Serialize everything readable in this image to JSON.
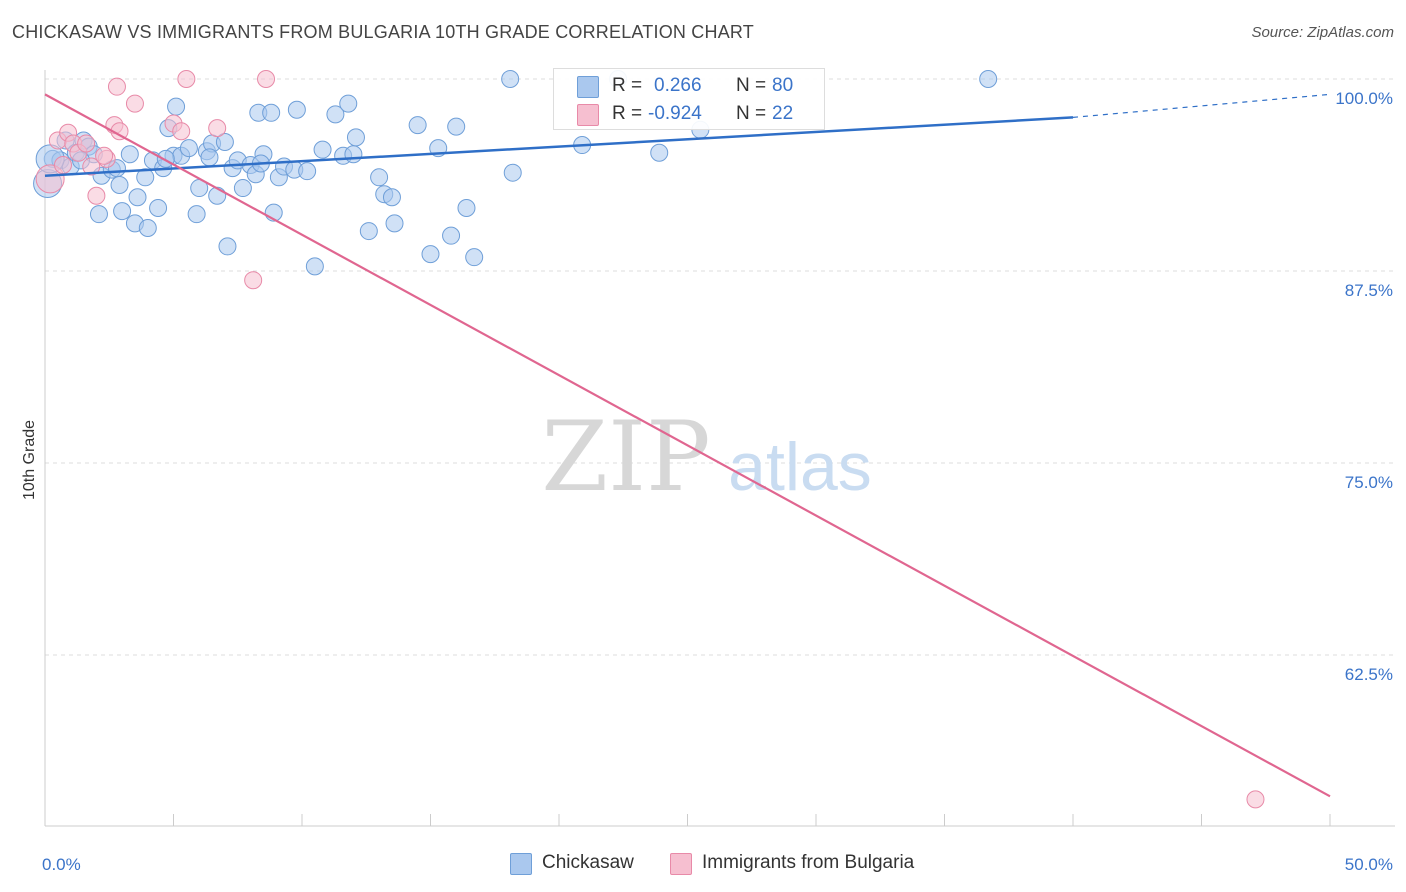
{
  "title": "CHICKASAW VS IMMIGRANTS FROM BULGARIA 10TH GRADE CORRELATION CHART",
  "source": "Source: ZipAtlas.com",
  "watermark": {
    "zip": "ZIP",
    "atlas": "atlas"
  },
  "legend_top": {
    "rows": [
      {
        "r_label": "R =",
        "r_value": "0.266",
        "n_label": "N =",
        "n_value": "80"
      },
      {
        "r_label": "R =",
        "r_value": "-0.924",
        "n_label": "N =",
        "n_value": "22"
      }
    ]
  },
  "legend_bottom": {
    "items": [
      "Chickasaw",
      "Immigrants from Bulgaria"
    ]
  },
  "colors": {
    "blue_fill": "#aac8ee",
    "blue_stroke": "#6f9fd8",
    "blue_line": "#2f6fc7",
    "pink_fill": "#f6bfd0",
    "pink_stroke": "#e88aa8",
    "pink_line": "#e06690",
    "tick_label": "#3b74c9",
    "grid": "#dddddd"
  },
  "chart_data": {
    "type": "scatter",
    "title": "CHICKASAW VS IMMIGRANTS FROM BULGARIA 10TH GRADE CORRELATION CHART",
    "xlabel": "",
    "ylabel": "10th Grade",
    "xlim": [
      0,
      50
    ],
    "ylim": [
      51,
      101
    ],
    "x_tick_labels": [
      {
        "value": 0,
        "label": "0.0%"
      },
      {
        "value": 50,
        "label": "50.0%"
      }
    ],
    "y_tick_labels": [
      {
        "value": 100,
        "label": "100.0%"
      },
      {
        "value": 87.5,
        "label": "87.5%"
      },
      {
        "value": 75,
        "label": "75.0%"
      },
      {
        "value": 62.5,
        "label": "62.5%"
      }
    ],
    "series": [
      {
        "name": "Chickasaw",
        "color": "blue",
        "R": 0.266,
        "N": 80,
        "trend": {
          "x": [
            0,
            40
          ],
          "y": [
            93.7,
            97.5
          ],
          "dashed_to": [
            50,
            99.0
          ]
        },
        "points": [
          [
            0.1,
            93.2
          ],
          [
            0.3,
            94.8
          ],
          [
            0.6,
            94.7
          ],
          [
            0.8,
            96.0
          ],
          [
            1.0,
            94.3
          ],
          [
            1.2,
            95.2
          ],
          [
            1.5,
            96.0
          ],
          [
            1.7,
            95.6
          ],
          [
            1.9,
            95.1
          ],
          [
            2.1,
            91.2
          ],
          [
            2.2,
            93.7
          ],
          [
            2.6,
            94.1
          ],
          [
            2.9,
            93.1
          ],
          [
            3.0,
            91.4
          ],
          [
            3.3,
            95.1
          ],
          [
            3.5,
            90.6
          ],
          [
            3.6,
            92.3
          ],
          [
            3.9,
            93.6
          ],
          [
            4.0,
            90.3
          ],
          [
            4.2,
            94.7
          ],
          [
            4.4,
            91.6
          ],
          [
            4.6,
            94.2
          ],
          [
            4.8,
            96.8
          ],
          [
            5.0,
            95.0
          ],
          [
            5.1,
            98.2
          ],
          [
            5.3,
            95.0
          ],
          [
            5.6,
            95.5
          ],
          [
            5.9,
            91.2
          ],
          [
            6.0,
            92.9
          ],
          [
            6.3,
            95.3
          ],
          [
            6.5,
            95.8
          ],
          [
            6.7,
            92.4
          ],
          [
            7.0,
            95.9
          ],
          [
            7.1,
            89.1
          ],
          [
            7.3,
            94.2
          ],
          [
            7.5,
            94.7
          ],
          [
            7.7,
            92.9
          ],
          [
            8.0,
            94.4
          ],
          [
            8.2,
            93.8
          ],
          [
            8.3,
            97.8
          ],
          [
            8.5,
            95.1
          ],
          [
            8.8,
            97.8
          ],
          [
            8.9,
            91.3
          ],
          [
            9.1,
            93.6
          ],
          [
            9.3,
            94.3
          ],
          [
            9.7,
            94.1
          ],
          [
            9.8,
            98.0
          ],
          [
            10.2,
            94.0
          ],
          [
            10.5,
            87.8
          ],
          [
            10.8,
            95.4
          ],
          [
            11.3,
            97.7
          ],
          [
            11.6,
            95.0
          ],
          [
            11.8,
            98.4
          ],
          [
            12.0,
            95.1
          ],
          [
            12.1,
            96.2
          ],
          [
            12.6,
            90.1
          ],
          [
            13.0,
            93.6
          ],
          [
            13.2,
            92.5
          ],
          [
            13.5,
            92.3
          ],
          [
            13.6,
            90.6
          ],
          [
            14.5,
            97.0
          ],
          [
            15.0,
            88.6
          ],
          [
            15.3,
            95.5
          ],
          [
            15.8,
            89.8
          ],
          [
            16.0,
            96.9
          ],
          [
            16.4,
            91.6
          ],
          [
            16.7,
            88.4
          ],
          [
            18.2,
            93.9
          ],
          [
            18.1,
            100.0
          ],
          [
            20.9,
            95.7
          ],
          [
            22.3,
            100.0
          ],
          [
            23.9,
            95.2
          ],
          [
            25.5,
            96.7
          ],
          [
            36.7,
            100.0
          ],
          [
            0.2,
            94.8
          ],
          [
            1.4,
            94.7
          ],
          [
            2.8,
            94.2
          ],
          [
            4.7,
            94.8
          ],
          [
            6.4,
            94.9
          ],
          [
            8.4,
            94.5
          ]
        ]
      },
      {
        "name": "Immigrants from Bulgaria",
        "color": "pink",
        "R": -0.924,
        "N": 22,
        "trend": {
          "x": [
            0,
            50
          ],
          "y": [
            99.0,
            53.3
          ]
        },
        "points": [
          [
            0.2,
            93.5
          ],
          [
            0.5,
            96.0
          ],
          [
            0.7,
            94.4
          ],
          [
            0.9,
            96.5
          ],
          [
            1.1,
            95.8
          ],
          [
            1.3,
            95.2
          ],
          [
            1.6,
            95.8
          ],
          [
            1.8,
            94.3
          ],
          [
            2.0,
            92.4
          ],
          [
            2.4,
            94.8
          ],
          [
            2.7,
            97.0
          ],
          [
            2.9,
            96.6
          ],
          [
            2.8,
            99.5
          ],
          [
            3.5,
            98.4
          ],
          [
            5.0,
            97.1
          ],
          [
            5.3,
            96.6
          ],
          [
            5.5,
            100.0
          ],
          [
            6.7,
            96.8
          ],
          [
            8.1,
            86.9
          ],
          [
            8.6,
            100.0
          ],
          [
            2.3,
            95.0
          ],
          [
            47.1,
            53.1
          ]
        ]
      }
    ]
  }
}
